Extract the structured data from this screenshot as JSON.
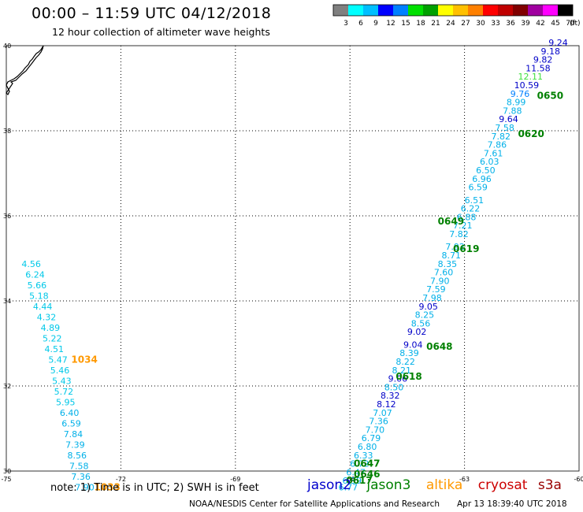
{
  "header": {
    "title": "00:00 – 11:59 UTC 04/12/2018",
    "subtitle": "12 hour collection of altimeter wave heights"
  },
  "colorbar": {
    "colors": [
      "#808080",
      "#00ffff",
      "#00bfff",
      "#0000ff",
      "#0080ff",
      "#00e000",
      "#00a000",
      "#ffff00",
      "#ffc000",
      "#ff8000",
      "#ff0000",
      "#c00000",
      "#800000",
      "#a000a0",
      "#ff00ff",
      "#000000"
    ],
    "labels": [
      "3",
      "6",
      "9",
      "12",
      "15",
      "18",
      "21",
      "24",
      "27",
      "30",
      "33",
      "36",
      "39",
      "42",
      "45",
      "70"
    ],
    "unit": "(ft)"
  },
  "map": {
    "lon_ticks": [
      "-75",
      "-72",
      "-69",
      "-66",
      "-63",
      "-60"
    ],
    "lat_ticks": [
      "40",
      "38",
      "36",
      "34",
      "32",
      "30"
    ],
    "lon_range": [
      -75,
      -60
    ],
    "lat_range": [
      30,
      40
    ]
  },
  "wave_labels": [
    {
      "v": "4.56",
      "lon": -74.6,
      "lat": 34.8,
      "c": "#00c8e8"
    },
    {
      "v": "6.24",
      "lon": -74.5,
      "lat": 34.55,
      "c": "#00c8e8"
    },
    {
      "v": "5.66",
      "lon": -74.45,
      "lat": 34.3,
      "c": "#00c8e8"
    },
    {
      "v": "5.18",
      "lon": -74.4,
      "lat": 34.05,
      "c": "#00c8e8"
    },
    {
      "v": "4.44",
      "lon": -74.3,
      "lat": 33.8,
      "c": "#00c8e8"
    },
    {
      "v": "4.32",
      "lon": -74.2,
      "lat": 33.55,
      "c": "#00c8e8"
    },
    {
      "v": "4.89",
      "lon": -74.1,
      "lat": 33.3,
      "c": "#00c8e8"
    },
    {
      "v": "5.22",
      "lon": -74.05,
      "lat": 33.05,
      "c": "#00c8e8"
    },
    {
      "v": "4.51",
      "lon": -74.0,
      "lat": 32.8,
      "c": "#00c8e8"
    },
    {
      "v": "5.47",
      "lon": -73.9,
      "lat": 32.55,
      "c": "#00c8e8"
    },
    {
      "v": "5.46",
      "lon": -73.85,
      "lat": 32.3,
      "c": "#00c8e8"
    },
    {
      "v": "5.43",
      "lon": -73.8,
      "lat": 32.05,
      "c": "#00c8e8"
    },
    {
      "v": "5.72",
      "lon": -73.75,
      "lat": 31.8,
      "c": "#00c8e8"
    },
    {
      "v": "5.95",
      "lon": -73.7,
      "lat": 31.55,
      "c": "#00c8e8"
    },
    {
      "v": "6.40",
      "lon": -73.6,
      "lat": 31.3,
      "c": "#00b0e8"
    },
    {
      "v": "6.59",
      "lon": -73.55,
      "lat": 31.05,
      "c": "#00b0e8"
    },
    {
      "v": "7.84",
      "lon": -73.5,
      "lat": 30.8,
      "c": "#00b0e8"
    },
    {
      "v": "7.39",
      "lon": -73.45,
      "lat": 30.55,
      "c": "#00b0e8"
    },
    {
      "v": "8.56",
      "lon": -73.4,
      "lat": 30.3,
      "c": "#00b0e8"
    },
    {
      "v": "7.58",
      "lon": -73.35,
      "lat": 30.05,
      "c": "#00b0e8"
    },
    {
      "v": "7.36",
      "lon": -73.3,
      "lat": 29.8,
      "c": "#00b0e8"
    },
    {
      "v": "7.90",
      "lon": -73.2,
      "lat": 29.55,
      "c": "#00b0e8"
    },
    {
      "v": "6.77",
      "lon": -66.3,
      "lat": 29.55,
      "c": "#00b0e8"
    },
    {
      "v": "6.39",
      "lon": -66.2,
      "lat": 29.7,
      "c": "#00b0e8"
    },
    {
      "v": "6.47",
      "lon": -66.1,
      "lat": 29.9,
      "c": "#00b0e8"
    },
    {
      "v": "6.72",
      "lon": -66.0,
      "lat": 30.1,
      "c": "#00b0e8"
    },
    {
      "v": "6.33",
      "lon": -65.9,
      "lat": 30.3,
      "c": "#00b0e8"
    },
    {
      "v": "6.80",
      "lon": -65.8,
      "lat": 30.5,
      "c": "#00b0e8"
    },
    {
      "v": "6.79",
      "lon": -65.7,
      "lat": 30.7,
      "c": "#00b0e8"
    },
    {
      "v": "7.70",
      "lon": -65.6,
      "lat": 30.9,
      "c": "#00b0e8"
    },
    {
      "v": "7.36",
      "lon": -65.5,
      "lat": 31.1,
      "c": "#00b0e8"
    },
    {
      "v": "7.07",
      "lon": -65.4,
      "lat": 31.3,
      "c": "#00b0e8"
    },
    {
      "v": "8.12",
      "lon": -65.3,
      "lat": 31.5,
      "c": "#0000c8"
    },
    {
      "v": "8.32",
      "lon": -65.2,
      "lat": 31.7,
      "c": "#0000c8"
    },
    {
      "v": "8.50",
      "lon": -65.1,
      "lat": 31.9,
      "c": "#00b0e8"
    },
    {
      "v": "9.06",
      "lon": -65.0,
      "lat": 32.1,
      "c": "#0000c8"
    },
    {
      "v": "8.21",
      "lon": -64.9,
      "lat": 32.3,
      "c": "#00b0e8"
    },
    {
      "v": "8.22",
      "lon": -64.8,
      "lat": 32.5,
      "c": "#00b0e8"
    },
    {
      "v": "8.39",
      "lon": -64.7,
      "lat": 32.7,
      "c": "#00b0e8"
    },
    {
      "v": "9.04",
      "lon": -64.6,
      "lat": 32.9,
      "c": "#0000c8"
    },
    {
      "v": "9.02",
      "lon": -64.5,
      "lat": 33.2,
      "c": "#0000c8"
    },
    {
      "v": "8.56",
      "lon": -64.4,
      "lat": 33.4,
      "c": "#00b0e8"
    },
    {
      "v": "8.25",
      "lon": -64.3,
      "lat": 33.6,
      "c": "#00b0e8"
    },
    {
      "v": "9.05",
      "lon": -64.2,
      "lat": 33.8,
      "c": "#0000c8"
    },
    {
      "v": "7.98",
      "lon": -64.1,
      "lat": 34.0,
      "c": "#00b0e8"
    },
    {
      "v": "7.59",
      "lon": -64.0,
      "lat": 34.2,
      "c": "#00b0e8"
    },
    {
      "v": "7.90",
      "lon": -63.9,
      "lat": 34.4,
      "c": "#00b0e8"
    },
    {
      "v": "7.60",
      "lon": -63.8,
      "lat": 34.6,
      "c": "#00b0e8"
    },
    {
      "v": "8.35",
      "lon": -63.7,
      "lat": 34.8,
      "c": "#00b0e8"
    },
    {
      "v": "8.71",
      "lon": -63.6,
      "lat": 35.0,
      "c": "#00b0e8"
    },
    {
      "v": "7.92",
      "lon": -63.5,
      "lat": 35.2,
      "c": "#00b0e8"
    },
    {
      "v": "7.82",
      "lon": -63.4,
      "lat": 35.5,
      "c": "#00b0e8"
    },
    {
      "v": "7.21",
      "lon": -63.3,
      "lat": 35.7,
      "c": "#00b0e8"
    },
    {
      "v": "6.88",
      "lon": -63.2,
      "lat": 35.9,
      "c": "#00b0e8"
    },
    {
      "v": "6.22",
      "lon": -63.1,
      "lat": 36.1,
      "c": "#00b0e8"
    },
    {
      "v": "6.51",
      "lon": -63.0,
      "lat": 36.3,
      "c": "#00b0e8"
    },
    {
      "v": "6.59",
      "lon": -62.9,
      "lat": 36.6,
      "c": "#00b0e8"
    },
    {
      "v": "6.96",
      "lon": -62.8,
      "lat": 36.8,
      "c": "#00b0e8"
    },
    {
      "v": "6.50",
      "lon": -62.7,
      "lat": 37.0,
      "c": "#00b0e8"
    },
    {
      "v": "6.03",
      "lon": -62.6,
      "lat": 37.2,
      "c": "#00b0e8"
    },
    {
      "v": "7.61",
      "lon": -62.5,
      "lat": 37.4,
      "c": "#00b0e8"
    },
    {
      "v": "7.86",
      "lon": -62.4,
      "lat": 37.6,
      "c": "#00b0e8"
    },
    {
      "v": "7.82",
      "lon": -62.3,
      "lat": 37.8,
      "c": "#00b0e8"
    },
    {
      "v": "7.58",
      "lon": -62.2,
      "lat": 38.0,
      "c": "#00b0e8"
    },
    {
      "v": "9.64",
      "lon": -62.1,
      "lat": 38.2,
      "c": "#0000c8"
    },
    {
      "v": "7.88",
      "lon": -62.0,
      "lat": 38.4,
      "c": "#00b0e8"
    },
    {
      "v": "8.99",
      "lon": -61.9,
      "lat": 38.6,
      "c": "#00b0e8"
    },
    {
      "v": "9.76",
      "lon": -61.8,
      "lat": 38.8,
      "c": "#0080ff"
    },
    {
      "v": "10.59",
      "lon": -61.7,
      "lat": 39.0,
      "c": "#0000c8"
    },
    {
      "v": "12.11",
      "lon": -61.6,
      "lat": 39.2,
      "c": "#40e040"
    },
    {
      "v": "11.58",
      "lon": -61.4,
      "lat": 39.4,
      "c": "#0000c8"
    },
    {
      "v": "9.82",
      "lon": -61.2,
      "lat": 39.6,
      "c": "#0000c8"
    },
    {
      "v": "9.18",
      "lon": -61.0,
      "lat": 39.8,
      "c": "#0000c8"
    },
    {
      "v": "9.24",
      "lon": -60.8,
      "lat": 40.0,
      "c": "#0000c8"
    }
  ],
  "pass_times": [
    {
      "t": "1034",
      "lon": -73.3,
      "lat": 32.55,
      "c": "#ff9900"
    },
    {
      "t": "1033",
      "lon": -72.7,
      "lat": 29.55,
      "c": "#ff9900"
    },
    {
      "t": "0650",
      "lon": -61.1,
      "lat": 38.75,
      "c": "#008000"
    },
    {
      "t": "0620",
      "lon": -61.6,
      "lat": 37.85,
      "c": "#008000"
    },
    {
      "t": "0649",
      "lon": -63.7,
      "lat": 35.8,
      "c": "#008000"
    },
    {
      "t": "0619",
      "lon": -63.3,
      "lat": 35.15,
      "c": "#008000"
    },
    {
      "t": "0648",
      "lon": -64.0,
      "lat": 32.85,
      "c": "#008000"
    },
    {
      "t": "0618",
      "lon": -64.8,
      "lat": 32.15,
      "c": "#008000"
    },
    {
      "t": "0647",
      "lon": -65.9,
      "lat": 30.1,
      "c": "#008000"
    },
    {
      "t": "0646",
      "lon": -65.9,
      "lat": 29.85,
      "c": "#008000"
    },
    {
      "t": "0617",
      "lon": -66.1,
      "lat": 29.7,
      "c": "#008000"
    }
  ],
  "footer": {
    "note": "note: 1) Time is in UTC; 2) SWH is in feet",
    "satellites": [
      {
        "name": "jason2",
        "color": "#0000cc"
      },
      {
        "name": "jason3",
        "color": "#008000"
      },
      {
        "name": "altika",
        "color": "#ff9900"
      },
      {
        "name": "cryosat",
        "color": "#cc0000"
      },
      {
        "name": "s3a",
        "color": "#990000"
      }
    ],
    "credit": "NOAA/NESDIS Center for Satellite Applications and Research",
    "timestamp": "Apr 13 18:39:40 UTC 2018"
  }
}
